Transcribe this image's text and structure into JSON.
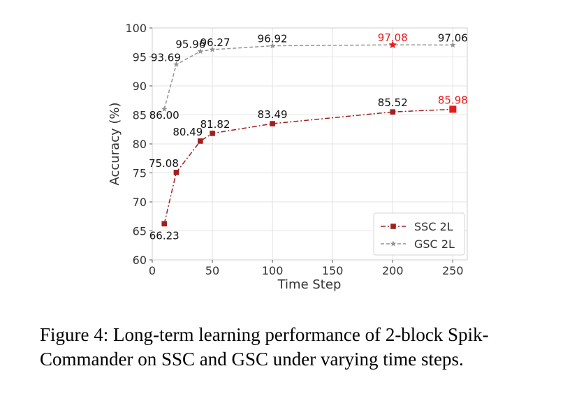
{
  "chart_data": {
    "type": "line",
    "xlabel": "Time Step",
    "ylabel": "Accuracy (%)",
    "xlim": [
      0,
      262
    ],
    "ylim": [
      60,
      100
    ],
    "x_ticks": [
      0,
      50,
      100,
      150,
      200,
      250
    ],
    "y_ticks": [
      60,
      65,
      70,
      75,
      80,
      85,
      90,
      95,
      100
    ],
    "grid": true,
    "legend_position": "lower-right",
    "series": [
      {
        "name": "SSC 2L",
        "marker": "square",
        "line_style": "dash-dot",
        "color": "#a02020",
        "x": [
          10,
          20,
          40,
          50,
          100,
          200,
          250
        ],
        "y": [
          66.23,
          75.08,
          80.49,
          81.82,
          83.49,
          85.52,
          85.98
        ],
        "labels": [
          "66.23",
          "75.08",
          "80.49",
          "81.82",
          "83.49",
          "85.52",
          "85.98"
        ],
        "highlight_index": 6
      },
      {
        "name": "GSC 2L",
        "marker": "star",
        "line_style": "dashed",
        "color": "#939393",
        "x": [
          10,
          20,
          40,
          50,
          100,
          200,
          250
        ],
        "y": [
          86.0,
          93.69,
          95.96,
          96.27,
          96.92,
          97.08,
          97.06
        ],
        "labels": [
          "86.00",
          "93.69",
          "95.96",
          "96.27",
          "96.92",
          "97.08",
          "97.06"
        ],
        "highlight_index": 5
      }
    ],
    "highlight_color": "#e8191a"
  },
  "caption": "Figure 4: Long-term learning performance of 2-block Spik-Commander on SSC and GSC under varying time steps."
}
